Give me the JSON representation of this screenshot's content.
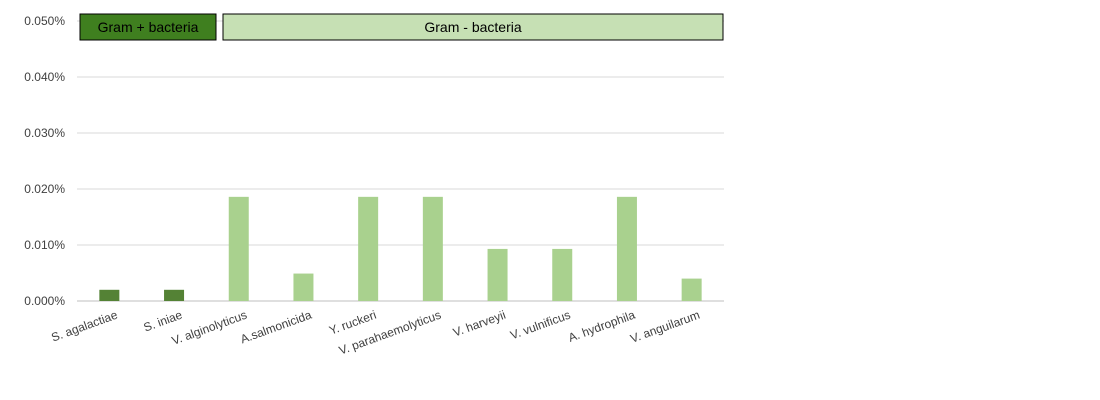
{
  "chart_data": {
    "type": "bar",
    "title": "",
    "xlabel": "",
    "ylabel": "",
    "ylim": [
      0,
      0.05
    ],
    "y_ticks": [
      "0.000%",
      "0.010%",
      "0.020%",
      "0.030%",
      "0.040%",
      "0.050%"
    ],
    "grid": true,
    "categories": [
      "S. agalactiae",
      "S.  iniae",
      "V. alginolyticus",
      "A.salmonicida",
      "Y. ruckeri",
      "V. parahaemolyticus",
      "V. harveyii",
      "V. vulnificus",
      "A. hydrophila",
      "V. anguilarum"
    ],
    "values": [
      0.002,
      0.002,
      0.0186,
      0.0049,
      0.0186,
      0.0186,
      0.0093,
      0.0093,
      0.0186,
      0.004
    ],
    "group_of_category": [
      0,
      0,
      1,
      1,
      1,
      1,
      1,
      1,
      1,
      1
    ],
    "groups": [
      {
        "label": "Gram + bacteria",
        "first": 0,
        "last": 1,
        "fill": "#3f7f1f",
        "bar_color": "#548235"
      },
      {
        "label": "Gram - bacteria",
        "first": 2,
        "last": 9,
        "fill": "#c6e0b4",
        "bar_color": "#a9d18e"
      }
    ]
  }
}
